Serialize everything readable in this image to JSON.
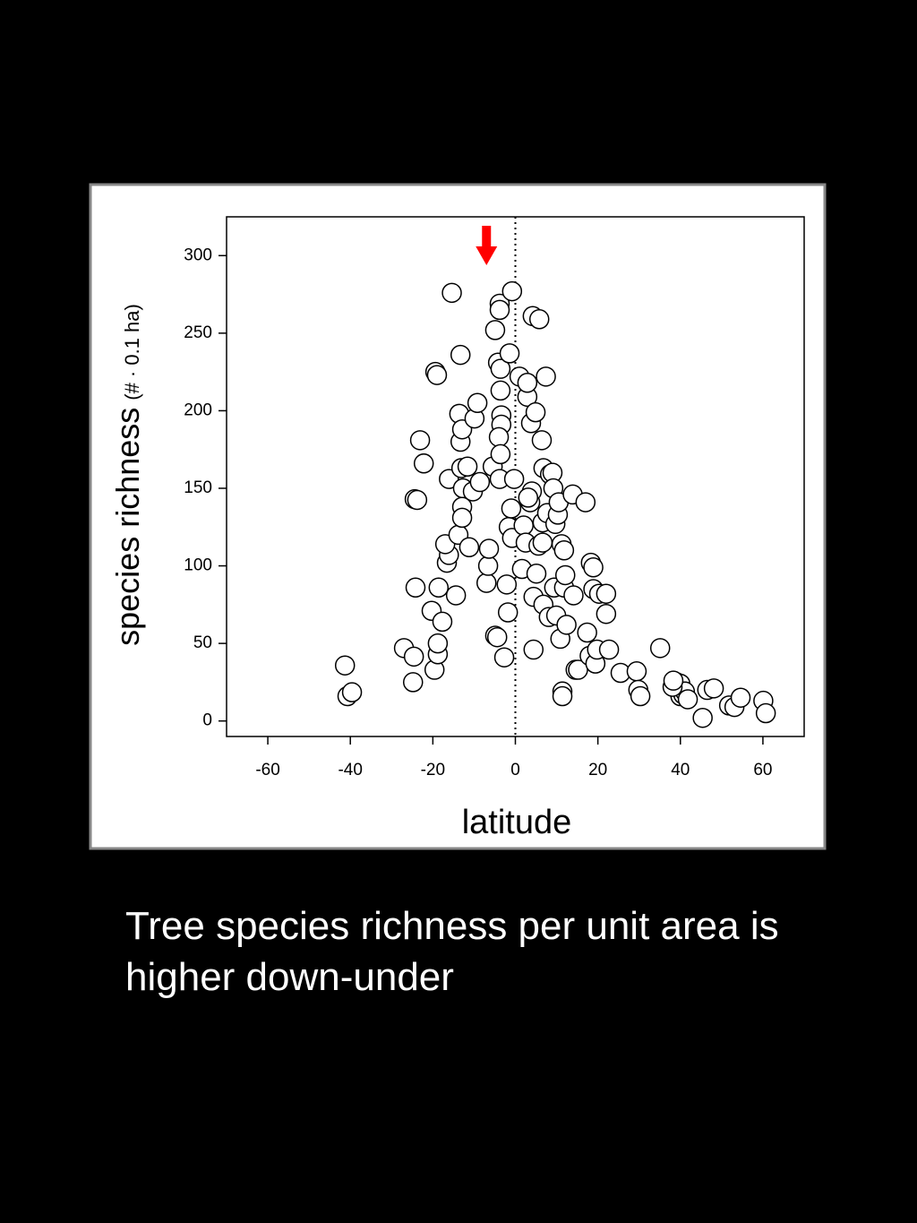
{
  "chart_data": {
    "type": "scatter",
    "xlabel": "latitude",
    "ylabel": "species richness",
    "ylabel_unit": "(# · 0.1 ha)",
    "xlim": [
      -70,
      70
    ],
    "ylim": [
      -10,
      325
    ],
    "xticks": [
      -60,
      -40,
      -20,
      0,
      20,
      40,
      60
    ],
    "yticks": [
      0,
      50,
      100,
      150,
      200,
      250,
      300
    ],
    "vline": 0,
    "arrow_x": -7,
    "arrow_color": "#ff0000",
    "marker_color": "#ffffff",
    "edge_color": "#000000",
    "x": [
      -41.3,
      -40.7,
      -39.6,
      -27,
      -24.6,
      -24.8,
      -24.2,
      -24.4,
      -23.8,
      -23.1,
      -22.2,
      -19.4,
      -19,
      -20.3,
      -19.6,
      -18.8,
      -18.8,
      -18.6,
      -17.7,
      -16.6,
      -16.1,
      -17,
      -16.1,
      -15.4,
      -14.4,
      -13.8,
      -13.3,
      -13.6,
      -13.3,
      -12.9,
      -13.1,
      -12.7,
      -12.9,
      -12.9,
      -11.2,
      -11.6,
      -10.3,
      -9.9,
      -9.2,
      -8.6,
      -7,
      -6.6,
      -6.4,
      -5.5,
      -4.9,
      -4.4,
      -4.9,
      -4.2,
      -3.8,
      -3.8,
      -3.6,
      -3.6,
      -3.4,
      -3.4,
      -4,
      -3.6,
      -3.8,
      -2.7,
      -2.1,
      -1.8,
      -1.6,
      -1.4,
      -0.8,
      -1,
      -0.8,
      -0.3,
      1,
      2,
      2.5,
      1.6,
      2.9,
      2.9,
      3.6,
      3.8,
      4,
      4.2,
      4.4,
      4.4,
      4.9,
      5.1,
      5.6,
      5.8,
      6.4,
      6.6,
      6.8,
      6.8,
      7.4,
      7.7,
      8.4,
      8.1,
      9,
      9.2,
      9.7,
      9.4,
      9.9,
      10.3,
      10.5,
      10.9,
      11.2,
      11.4,
      11.4,
      11.8,
      12.1,
      11.8,
      12.4,
      13.9,
      14.1,
      14.6,
      15.2,
      17,
      17.4,
      18,
      18.3,
      18.9,
      18.9,
      19.4,
      19.8,
      20.3,
      22,
      22,
      22.7,
      25.5,
      29.4,
      29.8,
      30.3,
      35.1,
      39,
      39.4,
      40,
      40,
      40.7,
      41.1,
      41.8,
      38.1,
      38.3,
      45.4,
      46.5,
      48.1,
      51.8,
      53.1,
      54.6,
      60.1,
      60.7,
      6.6,
      3.1
    ],
    "y": [
      35.8,
      16,
      18.5,
      47,
      41.5,
      25,
      86,
      143,
      142.5,
      181,
      166,
      225,
      223,
      71,
      33,
      43,
      50,
      86,
      64,
      102,
      107,
      114,
      156,
      276,
      81,
      120,
      236,
      198,
      180,
      188,
      163,
      150,
      138,
      131,
      112,
      164,
      148,
      195,
      205,
      154,
      89,
      100,
      111,
      164,
      55,
      54,
      252,
      231,
      269,
      265,
      227,
      213,
      197,
      191,
      183,
      172,
      156,
      41,
      88,
      70,
      125,
      237,
      277,
      137,
      118,
      156,
      222,
      126,
      115,
      98,
      209,
      218,
      141,
      192,
      148,
      261,
      46,
      80,
      199,
      95,
      113,
      259,
      181,
      128,
      75,
      163,
      222,
      134,
      159,
      67,
      160,
      150,
      127,
      86,
      68,
      133,
      141,
      53,
      114,
      19,
      16,
      86,
      94,
      110,
      62,
      146,
      81,
      33,
      33,
      141,
      57,
      42,
      102,
      99,
      85,
      37,
      46,
      82,
      82,
      69,
      46,
      31,
      32,
      20,
      16,
      47,
      25,
      22,
      24,
      16,
      17,
      19,
      14,
      22,
      26,
      2,
      20,
      21,
      10,
      9,
      15,
      13,
      5,
      115,
      144
    ]
  },
  "caption": "Tree species richness per unit area is higher down-under"
}
